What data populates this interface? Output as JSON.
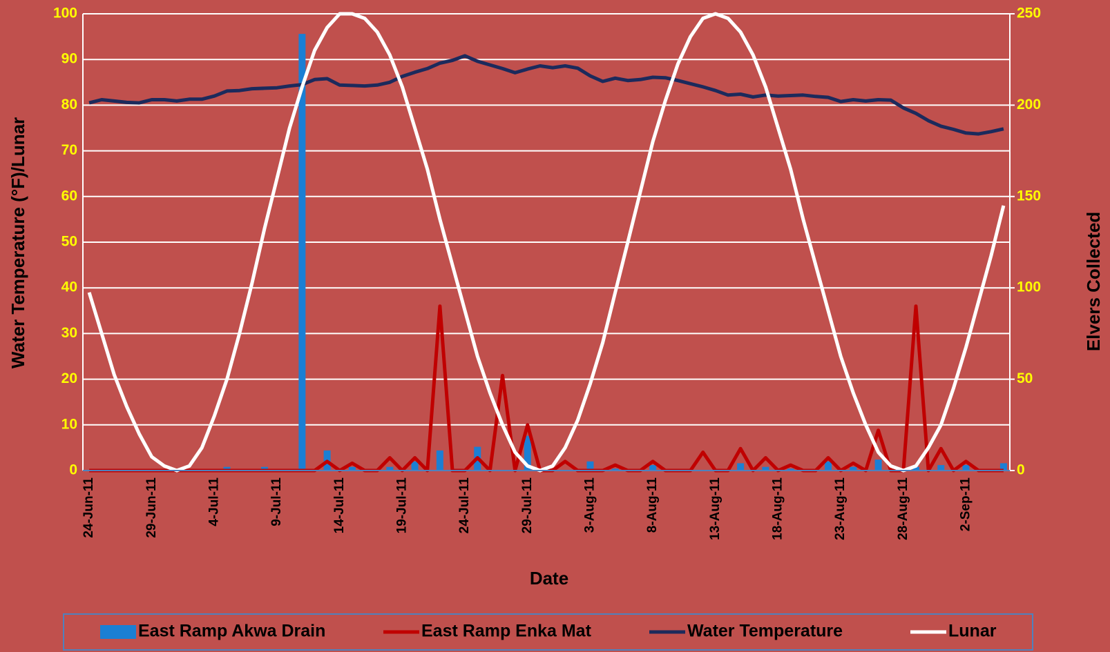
{
  "chart_data": {
    "type": "combo",
    "xlabel": "Date",
    "ylabel": "Water Temperature (°F)/Lunar",
    "y2label": "Elvers Collected",
    "categories": [
      "24-Jun-11",
      null,
      null,
      null,
      null,
      "29-Jun-11",
      null,
      null,
      null,
      null,
      "4-Jul-11",
      null,
      null,
      null,
      null,
      "9-Jul-11",
      null,
      null,
      null,
      null,
      "14-Jul-11",
      null,
      null,
      null,
      null,
      "19-Jul-11",
      null,
      null,
      null,
      null,
      "24-Jul-11",
      null,
      null,
      null,
      null,
      "29-Jul-11",
      null,
      null,
      null,
      null,
      "3-Aug-11",
      null,
      null,
      null,
      null,
      "8-Aug-11",
      null,
      null,
      null,
      null,
      "13-Aug-11",
      null,
      null,
      null,
      null,
      "18-Aug-11",
      null,
      null,
      null,
      null,
      "23-Aug-11",
      null,
      null,
      null,
      null,
      "28-Aug-11",
      null,
      null,
      null,
      null,
      "2-Sep-11",
      null,
      null,
      null
    ],
    "ylim": [
      0,
      100
    ],
    "yticks": [
      0,
      10,
      20,
      30,
      40,
      50,
      60,
      70,
      80,
      90,
      100
    ],
    "y2lim": [
      0,
      250
    ],
    "y2ticks": [
      0,
      50,
      100,
      150,
      200,
      250
    ],
    "grid": true,
    "legend": "bottom",
    "series": [
      {
        "name": "East Ramp Akwa Drain",
        "type": "bar",
        "axis": "y2",
        "color": "#1b7fd4",
        "values": [
          0,
          0,
          0,
          0,
          0,
          0,
          0,
          0,
          0,
          0,
          0,
          2,
          0,
          0,
          2,
          0,
          0,
          239,
          0,
          11,
          0,
          2,
          0,
          0,
          2,
          0,
          5,
          0,
          11,
          0,
          0,
          13,
          0,
          0,
          0,
          19,
          0,
          0,
          0,
          0,
          5,
          0,
          1,
          0,
          0,
          3,
          0,
          0,
          0,
          0,
          0,
          0,
          4,
          0,
          2,
          0,
          1,
          0,
          0,
          5,
          0,
          2,
          0,
          6,
          0,
          0,
          2,
          0,
          3,
          0,
          3,
          0,
          0,
          4
        ]
      },
      {
        "name": "East Ramp Enka Mat",
        "type": "line",
        "axis": "y2",
        "color": "#c00000",
        "values": [
          0,
          0,
          0,
          0,
          0,
          0,
          0,
          0,
          0,
          0,
          0,
          0,
          0,
          0,
          0,
          0,
          0,
          0,
          0,
          5,
          0,
          4,
          0,
          0,
          7,
          0,
          7,
          0,
          90,
          0,
          0,
          7,
          0,
          52,
          0,
          25,
          0,
          0,
          5,
          0,
          0,
          0,
          3,
          0,
          0,
          5,
          0,
          0,
          0,
          10,
          0,
          0,
          12,
          0,
          7,
          0,
          3,
          0,
          0,
          7,
          0,
          4,
          0,
          22,
          0,
          0,
          90,
          0,
          12,
          0,
          5,
          0,
          0,
          0
        ]
      },
      {
        "name": "Water Temperature",
        "type": "line",
        "color": "#1c2a5c",
        "values": [
          80.5,
          81.2,
          80.9,
          80.6,
          80.5,
          81.2,
          81.2,
          80.9,
          81.3,
          81.3,
          82.0,
          83.1,
          83.2,
          83.6,
          83.7,
          83.8,
          84.2,
          84.5,
          85.6,
          85.8,
          84.4,
          84.3,
          84.2,
          84.4,
          85.0,
          86.3,
          87.2,
          88.0,
          89.2,
          89.8,
          90.8,
          89.6,
          88.8,
          88.0,
          87.1,
          87.9,
          88.6,
          88.2,
          88.6,
          88.1,
          86.4,
          85.2,
          85.9,
          85.4,
          85.6,
          86.1,
          86.0,
          85.4,
          84.7,
          84.0,
          83.2,
          82.2,
          82.4,
          81.8,
          82.2,
          82.0,
          82.1,
          82.2,
          81.9,
          81.7,
          80.8,
          81.2,
          80.9,
          81.2,
          81.1,
          79.4,
          78.2,
          76.6,
          75.4,
          74.7,
          73.9,
          73.7,
          74.2,
          74.8
        ]
      },
      {
        "name": "Lunar",
        "type": "line",
        "color": "#ffffff",
        "values": [
          39,
          30,
          21,
          14,
          8,
          3,
          1,
          0,
          1,
          5,
          12,
          20,
          30,
          41,
          53,
          64,
          75,
          84,
          92,
          97,
          100,
          100,
          99,
          96,
          91,
          84,
          75,
          66,
          55,
          45,
          35,
          25,
          17,
          10,
          4,
          1,
          0,
          1,
          5,
          11,
          19,
          28,
          39,
          50,
          61,
          72,
          81,
          89,
          95,
          99,
          100,
          99,
          96,
          91,
          84,
          75,
          66,
          55,
          45,
          35,
          25,
          17,
          10,
          4,
          1,
          0,
          1,
          5,
          10,
          18,
          27,
          37,
          47,
          58
        ]
      }
    ]
  }
}
